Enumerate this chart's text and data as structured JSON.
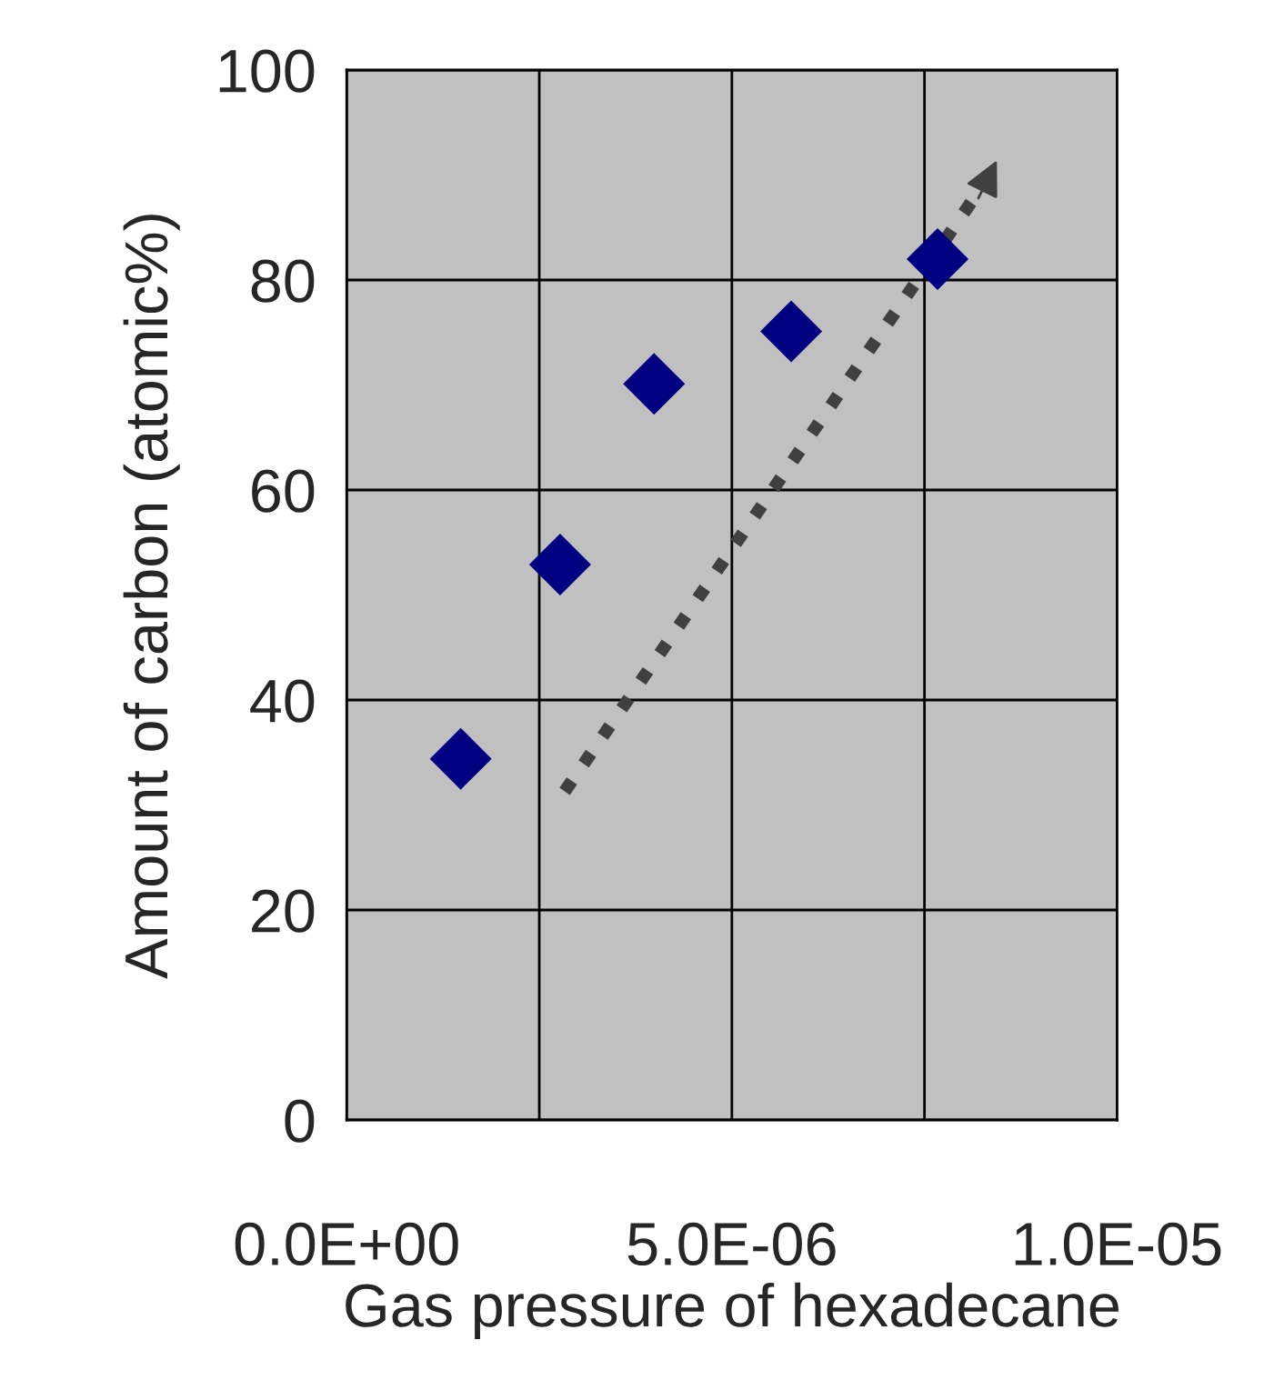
{
  "chart_data": {
    "type": "scatter",
    "xlabel": "Gas pressure of hexadecane",
    "ylabel": "Amount of carbon (atomic%)",
    "xlim": [
      0,
      1e-05
    ],
    "xticks": [
      {
        "value": 0,
        "label": "0.0E+00"
      },
      {
        "value": 2.5e-06,
        "label": null
      },
      {
        "value": 5e-06,
        "label": "5.0E-06"
      },
      {
        "value": 7.5e-06,
        "label": null
      },
      {
        "value": 1e-05,
        "label": "1.0E-05"
      }
    ],
    "ylim": [
      0,
      100
    ],
    "yticks": [
      0,
      20,
      40,
      60,
      80,
      100
    ],
    "grid": true,
    "marker": "diamond",
    "series": [
      {
        "color": "#000080",
        "x": [
          1.48e-06,
          2.77e-06,
          3.99e-06,
          5.77e-06,
          7.67e-06
        ],
        "values": [
          34.4,
          52.9,
          70.1,
          75.1,
          82.0
        ]
      }
    ]
  }
}
